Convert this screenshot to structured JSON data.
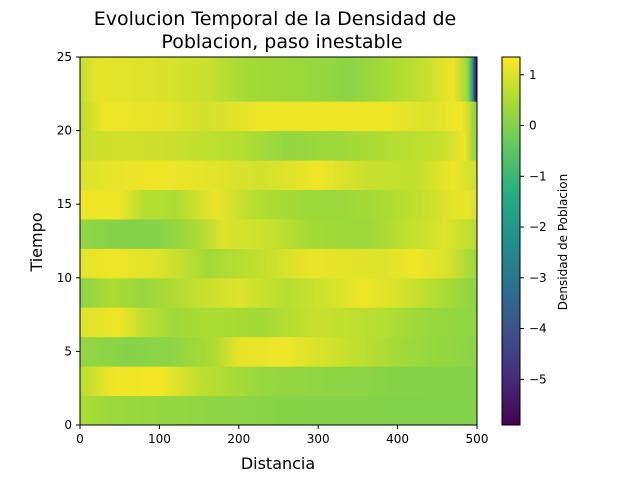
{
  "chart_data": {
    "type": "heatmap",
    "title_lines": [
      "Evolucion Temporal de la Densidad de",
      "Poblacion, paso inestable"
    ],
    "xlabel": "Distancia",
    "ylabel": "Tiempo",
    "xlim": [
      0,
      500
    ],
    "ylim": [
      0,
      25
    ],
    "x_ticks": [
      "0",
      "100",
      "200",
      "300",
      "400",
      "500"
    ],
    "y_ticks": [
      "0",
      "5",
      "10",
      "15",
      "20",
      "25"
    ],
    "x_tick_values": [
      0,
      100,
      200,
      300,
      400,
      500
    ],
    "y_tick_values": [
      0,
      5,
      10,
      15,
      20,
      25
    ],
    "colorbar": {
      "label": "Densidad de Poblacion",
      "colormap": "viridis",
      "range": [
        -5.9,
        1.35
      ],
      "ticks": [
        "1",
        "0",
        "−1",
        "−2",
        "−3",
        "−4",
        "−5"
      ],
      "tick_values": [
        1,
        0,
        -1,
        -2,
        -3,
        -4,
        -5
      ]
    },
    "row_centers": [
      1,
      3,
      5,
      7,
      9,
      11,
      13,
      15,
      17,
      19,
      21,
      23,
      25
    ],
    "rows": [
      [
        [
          0,
          0.5
        ],
        [
          40,
          0.3
        ],
        [
          160,
          0.15
        ],
        [
          260,
          0.05
        ],
        [
          400,
          0.0
        ],
        [
          500,
          0.0
        ]
      ],
      [
        [
          0,
          0.6
        ],
        [
          40,
          1.2
        ],
        [
          100,
          1.25
        ],
        [
          150,
          0.7
        ],
        [
          230,
          0.25
        ],
        [
          400,
          0.05
        ],
        [
          500,
          0.0
        ]
      ],
      [
        [
          0,
          0.2
        ],
        [
          60,
          0.05
        ],
        [
          110,
          0.1
        ],
        [
          170,
          0.5
        ],
        [
          200,
          1.1
        ],
        [
          260,
          1.2
        ],
        [
          330,
          0.8
        ],
        [
          420,
          0.3
        ],
        [
          500,
          0.1
        ]
      ],
      [
        [
          0,
          1.0
        ],
        [
          50,
          1.2
        ],
        [
          80,
          0.7
        ],
        [
          120,
          0.35
        ],
        [
          160,
          0.5
        ],
        [
          230,
          0.4
        ],
        [
          300,
          0.8
        ],
        [
          380,
          0.6
        ],
        [
          430,
          0.3
        ],
        [
          500,
          0.15
        ]
      ],
      [
        [
          0,
          0.1
        ],
        [
          40,
          0.5
        ],
        [
          80,
          0.25
        ],
        [
          150,
          0.75
        ],
        [
          200,
          1.0
        ],
        [
          260,
          0.6
        ],
        [
          330,
          1.0
        ],
        [
          360,
          1.2
        ],
        [
          420,
          0.8
        ],
        [
          470,
          0.4
        ],
        [
          500,
          0.1
        ]
      ],
      [
        [
          0,
          1.1
        ],
        [
          50,
          1.2
        ],
        [
          100,
          1.0
        ],
        [
          160,
          0.4
        ],
        [
          230,
          0.75
        ],
        [
          290,
          1.15
        ],
        [
          380,
          1.0
        ],
        [
          420,
          1.2
        ],
        [
          460,
          1.0
        ],
        [
          500,
          0.3
        ]
      ],
      [
        [
          0,
          0.2
        ],
        [
          50,
          0.0
        ],
        [
          100,
          0.05
        ],
        [
          150,
          0.5
        ],
        [
          180,
          1.0
        ],
        [
          240,
          0.8
        ],
        [
          290,
          0.4
        ],
        [
          360,
          0.3
        ],
        [
          410,
          0.7
        ],
        [
          460,
          1.0
        ],
        [
          490,
          0.7
        ],
        [
          500,
          0.6
        ]
      ],
      [
        [
          0,
          1.2
        ],
        [
          50,
          1.2
        ],
        [
          80,
          0.6
        ],
        [
          120,
          0.5
        ],
        [
          170,
          1.15
        ],
        [
          220,
          0.6
        ],
        [
          280,
          0.35
        ],
        [
          330,
          0.3
        ],
        [
          390,
          0.5
        ],
        [
          440,
          0.8
        ],
        [
          470,
          1.1
        ],
        [
          490,
          1.1
        ],
        [
          500,
          0.9
        ]
      ],
      [
        [
          0,
          1.0
        ],
        [
          50,
          1.15
        ],
        [
          100,
          1.2
        ],
        [
          150,
          1.1
        ],
        [
          230,
          0.9
        ],
        [
          300,
          1.2
        ],
        [
          360,
          0.8
        ],
        [
          420,
          0.7
        ],
        [
          470,
          1.2
        ],
        [
          500,
          0.8
        ]
      ],
      [
        [
          0,
          0.8
        ],
        [
          60,
          0.9
        ],
        [
          120,
          0.8
        ],
        [
          200,
          0.6
        ],
        [
          260,
          0.2
        ],
        [
          330,
          0.35
        ],
        [
          400,
          0.6
        ],
        [
          460,
          0.8
        ],
        [
          485,
          1.2
        ],
        [
          495,
          0.3
        ],
        [
          500,
          0.2
        ]
      ],
      [
        [
          0,
          0.6
        ],
        [
          30,
          1.2
        ],
        [
          110,
          1.1
        ],
        [
          160,
          0.9
        ],
        [
          230,
          1.2
        ],
        [
          310,
          1.2
        ],
        [
          380,
          1.2
        ],
        [
          440,
          1.0
        ],
        [
          480,
          1.25
        ],
        [
          490,
          0.8
        ],
        [
          496,
          0.2
        ],
        [
          500,
          0.2
        ]
      ],
      [
        [
          0,
          0.7
        ],
        [
          20,
          1.1
        ],
        [
          90,
          1.0
        ],
        [
          160,
          0.8
        ],
        [
          210,
          0.4
        ],
        [
          280,
          0.3
        ],
        [
          340,
          0.1
        ],
        [
          390,
          0.45
        ],
        [
          440,
          0.8
        ],
        [
          470,
          1.2
        ],
        [
          488,
          0.3
        ],
        [
          494,
          -1.5
        ],
        [
          497,
          -4.5
        ],
        [
          500,
          -5.8
        ]
      ],
      [
        [
          0,
          0.7
        ],
        [
          20,
          1.1
        ],
        [
          90,
          1.0
        ],
        [
          160,
          0.8
        ],
        [
          210,
          0.4
        ],
        [
          280,
          0.3
        ],
        [
          340,
          0.1
        ],
        [
          390,
          0.45
        ],
        [
          440,
          0.8
        ],
        [
          470,
          1.2
        ],
        [
          488,
          0.3
        ],
        [
          494,
          -1.5
        ],
        [
          497,
          -4.5
        ],
        [
          500,
          -5.8
        ]
      ]
    ]
  }
}
